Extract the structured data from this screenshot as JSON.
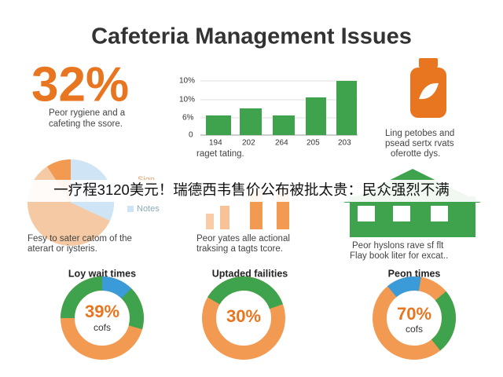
{
  "title": "Cafeteria Management Issues",
  "stat": {
    "value": "32%",
    "caption": [
      "Peor rygiene and a",
      "cafeting the ssore."
    ]
  },
  "bar_panel": {
    "axis_labels": [
      "10%",
      "10%",
      "6%",
      "0"
    ],
    "categories": [
      "194",
      "202",
      "264",
      "205",
      "203"
    ],
    "caption": "raget tating."
  },
  "bottle_panel": {
    "caption": [
      "Ling petobes and",
      "psead sertx rvats",
      "oferotte dys."
    ]
  },
  "pie_panel": {
    "legend": [
      "Sign",
      "Notes"
    ],
    "caption": [
      "Fesy to sater catom of the",
      "aterart or iysteris."
    ]
  },
  "orange_panel": {
    "caption": [
      "Peor yates alle actional",
      "traksing a tagts tcore."
    ]
  },
  "house_panel": {
    "caption": [
      "Peor hyslons rave sf flt",
      "Flay book liter for excat.."
    ]
  },
  "donuts": [
    {
      "title": "Loy wait times",
      "value": "39%",
      "sub": "cofs"
    },
    {
      "title": "Uptaded failities",
      "value": "30%"
    },
    {
      "title": "Peon times",
      "value": "70%",
      "sub": "cofs"
    }
  ],
  "banner": "一疗程3120美元！瑞德西韦售价公布被批太贵：民众强烈不满"
}
